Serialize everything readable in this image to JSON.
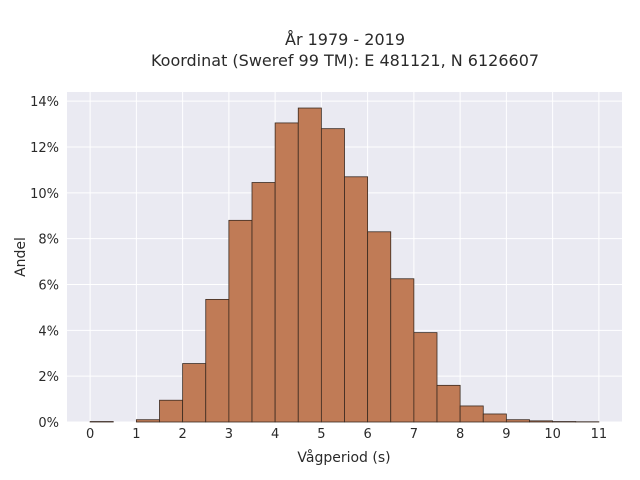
{
  "chart_data": {
    "type": "bar",
    "title": "År 1979 - 2019",
    "subtitle": "Koordinat (Sweref 99 TM): E 481121, N 6126607",
    "xlabel": "Vågperiod (s)",
    "ylabel": "Andel",
    "xlim": [
      -0.5,
      11.5
    ],
    "ylim": [
      0,
      14.4
    ],
    "x_ticks": [
      0,
      1,
      2,
      3,
      4,
      5,
      6,
      7,
      8,
      9,
      10,
      11
    ],
    "x_tick_labels": [
      "0",
      "1",
      "2",
      "3",
      "4",
      "5",
      "6",
      "7",
      "8",
      "9",
      "10",
      "11"
    ],
    "y_ticks": [
      0,
      2,
      4,
      6,
      8,
      10,
      12,
      14
    ],
    "y_tick_labels": [
      "0%",
      "2%",
      "4%",
      "6%",
      "8%",
      "10%",
      "12%",
      "14%"
    ],
    "grid": true,
    "bar_color": "#c07b56",
    "bar_edge_color": "#3a2a20",
    "plot_background": "#eaeaf2",
    "bins": [
      {
        "x0": 0.0,
        "x1": 0.5,
        "value": 0.02
      },
      {
        "x0": 1.0,
        "x1": 1.5,
        "value": 0.1
      },
      {
        "x0": 1.5,
        "x1": 2.0,
        "value": 0.95
      },
      {
        "x0": 2.0,
        "x1": 2.5,
        "value": 2.55
      },
      {
        "x0": 2.5,
        "x1": 3.0,
        "value": 5.35
      },
      {
        "x0": 3.0,
        "x1": 3.5,
        "value": 8.8
      },
      {
        "x0": 3.5,
        "x1": 4.0,
        "value": 10.45
      },
      {
        "x0": 4.0,
        "x1": 4.5,
        "value": 13.05
      },
      {
        "x0": 4.5,
        "x1": 5.0,
        "value": 13.7
      },
      {
        "x0": 5.0,
        "x1": 5.5,
        "value": 12.8
      },
      {
        "x0": 5.5,
        "x1": 6.0,
        "value": 10.7
      },
      {
        "x0": 6.0,
        "x1": 6.5,
        "value": 8.3
      },
      {
        "x0": 6.5,
        "x1": 7.0,
        "value": 6.25
      },
      {
        "x0": 7.0,
        "x1": 7.5,
        "value": 3.9
      },
      {
        "x0": 7.5,
        "x1": 8.0,
        "value": 1.6
      },
      {
        "x0": 8.0,
        "x1": 8.5,
        "value": 0.7
      },
      {
        "x0": 8.5,
        "x1": 9.0,
        "value": 0.35
      },
      {
        "x0": 9.0,
        "x1": 9.5,
        "value": 0.1
      },
      {
        "x0": 9.5,
        "x1": 10.0,
        "value": 0.05
      },
      {
        "x0": 10.0,
        "x1": 10.5,
        "value": 0.02
      },
      {
        "x0": 10.5,
        "x1": 11.0,
        "value": 0.01
      }
    ]
  }
}
